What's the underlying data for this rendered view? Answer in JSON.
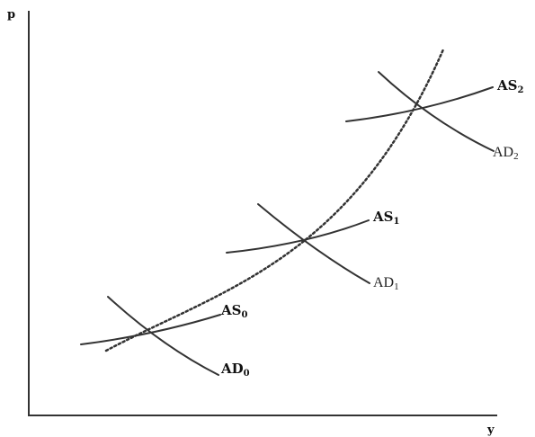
{
  "axes": {
    "y_label": "p",
    "x_label": "y"
  },
  "curves": {
    "as0": {
      "name": "AS",
      "sub": "0"
    },
    "as1": {
      "name": "AS",
      "sub": "1"
    },
    "as2": {
      "name": "AS",
      "sub": "2"
    },
    "ad0": {
      "name": "AD",
      "sub": "0"
    },
    "ad1": {
      "name": "AD",
      "sub": "1"
    },
    "ad2": {
      "name": "AD",
      "sub": "2"
    }
  }
}
